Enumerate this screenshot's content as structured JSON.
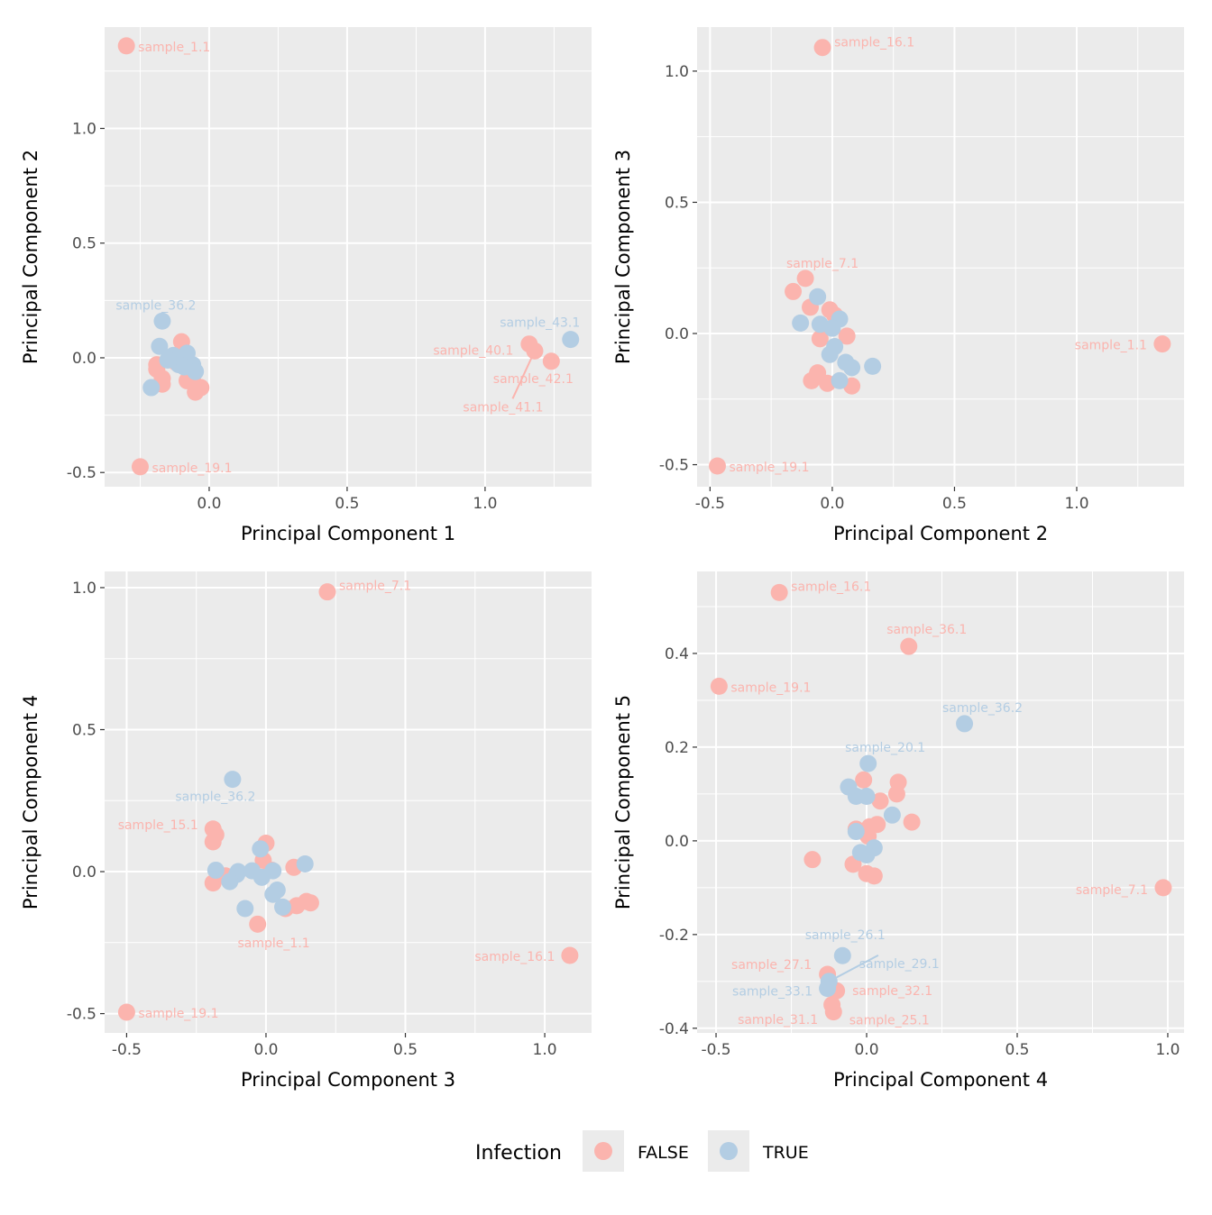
{
  "colors": {
    "FALSE": "#FBB4AE",
    "TRUE": "#B3CDE3",
    "panel_bg": "#EBEBEB",
    "grid": "#FFFFFF"
  },
  "legend": {
    "title": "Infection",
    "entries": [
      {
        "key": "FALSE",
        "label": "FALSE"
      },
      {
        "key": "TRUE",
        "label": "TRUE"
      }
    ],
    "placement": "bottom"
  },
  "chart_data": [
    {
      "type": "scatter",
      "xlabel": "Principal Component 1",
      "ylabel": "Principal Component 2",
      "xlim": [
        -0.379,
        1.386
      ],
      "ylim": [
        -0.562,
        1.442
      ],
      "grid": true,
      "xticks": [
        0.0,
        0.5,
        1.0
      ],
      "xtick_labels": [
        "0.0",
        "0.5",
        "1.0"
      ],
      "yticks": [
        -0.5,
        0.0,
        0.5,
        1.0
      ],
      "ytick_labels": [
        "-0.5",
        "0.0",
        "0.5",
        "1.0"
      ],
      "series": [
        {
          "group": "FALSE",
          "points": [
            {
              "x": -0.3,
              "y": 1.36,
              "label": "sample_1.1"
            },
            {
              "x": -0.25,
              "y": -0.475,
              "label": "sample_19.1"
            },
            {
              "x": 1.16,
              "y": 0.06,
              "label": "sample_40.1"
            },
            {
              "x": 1.18,
              "y": 0.03,
              "label": "sample_41.1"
            },
            {
              "x": 1.24,
              "y": -0.015,
              "label": "sample_42.1"
            },
            {
              "x": -0.1,
              "y": 0.07
            },
            {
              "x": -0.19,
              "y": -0.03
            },
            {
              "x": -0.19,
              "y": -0.05
            },
            {
              "x": -0.17,
              "y": -0.09
            },
            {
              "x": -0.17,
              "y": -0.115
            },
            {
              "x": -0.08,
              "y": -0.1
            },
            {
              "x": -0.05,
              "y": -0.15
            },
            {
              "x": -0.03,
              "y": -0.13
            },
            {
              "x": -0.06,
              "y": -0.1
            },
            {
              "x": -0.12,
              "y": -0.02
            }
          ]
        },
        {
          "group": "TRUE",
          "points": [
            {
              "x": 1.31,
              "y": 0.08,
              "label": "sample_43.1"
            },
            {
              "x": -0.17,
              "y": 0.16,
              "label": "sample_36.2"
            },
            {
              "x": -0.18,
              "y": 0.05
            },
            {
              "x": -0.21,
              "y": -0.13
            },
            {
              "x": -0.13,
              "y": 0.01
            },
            {
              "x": -0.08,
              "y": 0.02
            },
            {
              "x": -0.06,
              "y": -0.03
            },
            {
              "x": -0.05,
              "y": -0.06
            },
            {
              "x": -0.11,
              "y": -0.03
            },
            {
              "x": -0.15,
              "y": -0.01
            },
            {
              "x": -0.09,
              "y": -0.04
            }
          ]
        }
      ]
    },
    {
      "type": "scatter",
      "xlabel": "Principal Component 2",
      "ylabel": "Principal Component 3",
      "xlim": [
        -0.553,
        1.439
      ],
      "ylim": [
        -0.584,
        1.168
      ],
      "grid": true,
      "xticks": [
        -0.5,
        0.0,
        0.5,
        1.0
      ],
      "xtick_labels": [
        "-0.5",
        "0.0",
        "0.5",
        "1.0"
      ],
      "yticks": [
        -0.5,
        0.0,
        0.5,
        1.0
      ],
      "ytick_labels": [
        "-0.5",
        "0.0",
        "0.5",
        "1.0"
      ],
      "series": [
        {
          "group": "FALSE",
          "points": [
            {
              "x": -0.04,
              "y": 1.09,
              "label": "sample_16.1"
            },
            {
              "x": -0.47,
              "y": -0.505,
              "label": "sample_19.1"
            },
            {
              "x": 1.35,
              "y": -0.04,
              "label": "sample_1.1"
            },
            {
              "x": -0.11,
              "y": 0.21,
              "label": "sample_7.1"
            },
            {
              "x": -0.16,
              "y": 0.16
            },
            {
              "x": -0.09,
              "y": 0.1
            },
            {
              "x": -0.01,
              "y": 0.09
            },
            {
              "x": 0.06,
              "y": -0.01
            },
            {
              "x": -0.05,
              "y": -0.02
            },
            {
              "x": -0.085,
              "y": -0.18
            },
            {
              "x": -0.06,
              "y": -0.15
            },
            {
              "x": -0.02,
              "y": -0.19
            },
            {
              "x": 0.08,
              "y": -0.2
            },
            {
              "x": 0.01,
              "y": 0.07
            }
          ]
        },
        {
          "group": "TRUE",
          "points": [
            {
              "x": -0.06,
              "y": 0.14
            },
            {
              "x": -0.13,
              "y": 0.04
            },
            {
              "x": 0.03,
              "y": 0.055
            },
            {
              "x": 0.0,
              "y": 0.02
            },
            {
              "x": -0.01,
              "y": -0.08
            },
            {
              "x": 0.01,
              "y": -0.05
            },
            {
              "x": 0.055,
              "y": -0.11
            },
            {
              "x": 0.08,
              "y": -0.13
            },
            {
              "x": 0.165,
              "y": -0.125
            },
            {
              "x": 0.03,
              "y": -0.18
            },
            {
              "x": -0.05,
              "y": 0.035
            }
          ]
        }
      ]
    },
    {
      "type": "scatter",
      "xlabel": "Principal Component 3",
      "ylabel": "Principal Component 4",
      "xlim": [
        -0.579,
        1.168
      ],
      "ylim": [
        -0.568,
        1.057
      ],
      "grid": true,
      "xticks": [
        -0.5,
        0.0,
        0.5,
        1.0
      ],
      "xtick_labels": [
        "-0.5",
        "0.0",
        "0.5",
        "1.0"
      ],
      "yticks": [
        -0.5,
        0.0,
        0.5,
        1.0
      ],
      "ytick_labels": [
        "-0.5",
        "0.0",
        "0.5",
        "1.0"
      ],
      "series": [
        {
          "group": "FALSE",
          "points": [
            {
              "x": 0.22,
              "y": 0.985,
              "label": "sample_7.1"
            },
            {
              "x": -0.5,
              "y": -0.495,
              "label": "sample_19.1"
            },
            {
              "x": 1.09,
              "y": -0.295,
              "label": "sample_16.1"
            },
            {
              "x": -0.19,
              "y": 0.15,
              "label": "sample_15.1"
            },
            {
              "x": 0.07,
              "y": -0.13,
              "label": "sample_1.1"
            },
            {
              "x": -0.18,
              "y": 0.13
            },
            {
              "x": -0.19,
              "y": 0.105
            },
            {
              "x": -0.19,
              "y": -0.04
            },
            {
              "x": 0.0,
              "y": 0.1
            },
            {
              "x": -0.01,
              "y": 0.04
            },
            {
              "x": 0.1,
              "y": 0.015
            },
            {
              "x": 0.11,
              "y": -0.12
            },
            {
              "x": 0.145,
              "y": -0.105
            },
            {
              "x": 0.16,
              "y": -0.11
            },
            {
              "x": -0.03,
              "y": -0.185
            },
            {
              "x": 0.02,
              "y": 0.005
            },
            {
              "x": -0.145,
              "y": -0.015
            }
          ]
        },
        {
          "group": "TRUE",
          "points": [
            {
              "x": -0.12,
              "y": 0.325,
              "label": "sample_36.2"
            },
            {
              "x": -0.18,
              "y": 0.005
            },
            {
              "x": -0.02,
              "y": 0.08
            },
            {
              "x": -0.105,
              "y": -0.01
            },
            {
              "x": -0.1,
              "y": 0.0
            },
            {
              "x": -0.05,
              "y": 0.003
            },
            {
              "x": 0.025,
              "y": 0.003
            },
            {
              "x": 0.14,
              "y": 0.027
            },
            {
              "x": -0.075,
              "y": -0.13
            },
            {
              "x": 0.06,
              "y": -0.125
            },
            {
              "x": 0.04,
              "y": -0.065
            },
            {
              "x": 0.025,
              "y": -0.08
            },
            {
              "x": -0.015,
              "y": -0.02
            },
            {
              "x": -0.13,
              "y": -0.035
            }
          ]
        }
      ]
    },
    {
      "type": "scatter",
      "xlabel": "Principal Component 4",
      "ylabel": "Principal Component 5",
      "xlim": [
        -0.563,
        1.054
      ],
      "ylim": [
        -0.41,
        0.575
      ],
      "grid": true,
      "xticks": [
        -0.5,
        0.0,
        0.5,
        1.0
      ],
      "xtick_labels": [
        "-0.5",
        "0.0",
        "0.5",
        "1.0"
      ],
      "yticks": [
        -0.4,
        -0.2,
        0.0,
        0.2,
        0.4
      ],
      "ytick_labels": [
        "-0.4",
        "-0.2",
        "0.0",
        "0.2",
        "0.4"
      ],
      "series": [
        {
          "group": "FALSE",
          "points": [
            {
              "x": -0.29,
              "y": 0.53,
              "label": "sample_16.1"
            },
            {
              "x": 0.14,
              "y": 0.415,
              "label": "sample_36.1"
            },
            {
              "x": -0.49,
              "y": 0.33,
              "label": "sample_19.1"
            },
            {
              "x": 0.985,
              "y": -0.1,
              "label": "sample_7.1"
            },
            {
              "x": -0.13,
              "y": -0.285,
              "label": "sample_27.1"
            },
            {
              "x": -0.1,
              "y": -0.32,
              "label": "sample_32.1"
            },
            {
              "x": -0.115,
              "y": -0.35,
              "label": "sample_31.1"
            },
            {
              "x": -0.11,
              "y": -0.365,
              "label": "sample_25.1"
            },
            {
              "x": -0.01,
              "y": 0.13
            },
            {
              "x": 0.105,
              "y": 0.125
            },
            {
              "x": 0.1,
              "y": 0.1
            },
            {
              "x": 0.045,
              "y": 0.085
            },
            {
              "x": 0.15,
              "y": 0.04
            },
            {
              "x": -0.18,
              "y": -0.04
            },
            {
              "x": -0.045,
              "y": -0.05
            },
            {
              "x": 0.0,
              "y": -0.07
            },
            {
              "x": 0.025,
              "y": -0.075
            },
            {
              "x": 0.01,
              "y": 0.03
            },
            {
              "x": 0.035,
              "y": 0.035
            },
            {
              "x": -0.035,
              "y": 0.025
            },
            {
              "x": 0.005,
              "y": 0.01
            }
          ]
        },
        {
          "group": "TRUE",
          "points": [
            {
              "x": 0.005,
              "y": 0.165,
              "label": "sample_20.1"
            },
            {
              "x": 0.325,
              "y": 0.25,
              "label": "sample_36.2"
            },
            {
              "x": -0.08,
              "y": -0.245,
              "label": "sample_26.1"
            },
            {
              "x": -0.125,
              "y": -0.3,
              "label": "sample_29.1"
            },
            {
              "x": -0.13,
              "y": -0.315,
              "label": "sample_33.1"
            },
            {
              "x": -0.06,
              "y": 0.115
            },
            {
              "x": -0.035,
              "y": 0.095
            },
            {
              "x": 0.0,
              "y": 0.095
            },
            {
              "x": 0.085,
              "y": 0.055
            },
            {
              "x": -0.035,
              "y": 0.02
            },
            {
              "x": -0.02,
              "y": -0.025
            },
            {
              "x": 0.025,
              "y": -0.015
            },
            {
              "x": 0.0,
              "y": -0.03
            }
          ]
        }
      ]
    }
  ]
}
